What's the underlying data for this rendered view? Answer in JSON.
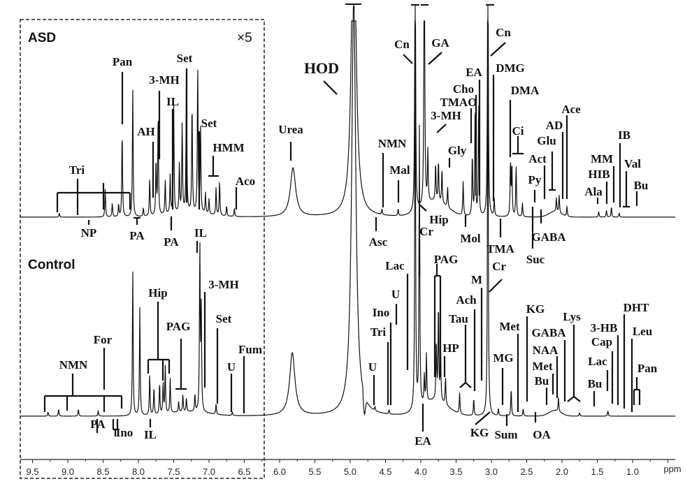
{
  "chart_data": {
    "type": "line",
    "xlabel": "ppm",
    "x_axis_reversed": true,
    "xlim": [
      9.6,
      0.4
    ],
    "x_ticks": [
      "9.5",
      "9.0",
      "8.5",
      "8.0",
      "7.5",
      "7.0",
      "6.5",
      "6.0",
      "5.5",
      "5.0",
      "4.5",
      "4.0",
      "3.5",
      "3.0",
      "2.5",
      "2.0",
      "1.5",
      "1.0"
    ],
    "x_unit_label": "ppm",
    "expanded_region": {
      "range_ppm": [
        9.6,
        6.2
      ],
      "scale_label": "×5"
    },
    "series": [
      {
        "name": "ASD",
        "peaks_ppm_intensity": [
          [
            9.12,
            6
          ],
          [
            8.47,
            40
          ],
          [
            8.37,
            20
          ],
          [
            8.28,
            18
          ],
          [
            8.23,
            125
          ],
          [
            8.08,
            185
          ],
          [
            7.93,
            12
          ],
          [
            7.84,
            55
          ],
          [
            7.75,
            80
          ],
          [
            7.72,
            150
          ],
          [
            7.62,
            50
          ],
          [
            7.55,
            55
          ],
          [
            7.5,
            155
          ],
          [
            7.42,
            70
          ],
          [
            7.38,
            130
          ],
          [
            7.32,
            215
          ],
          [
            7.24,
            160
          ],
          [
            7.16,
            215
          ],
          [
            7.12,
            125
          ],
          [
            7.05,
            30
          ],
          [
            7.0,
            22
          ],
          [
            6.9,
            40
          ],
          [
            6.85,
            50
          ],
          [
            6.75,
            15
          ],
          [
            6.64,
            12
          ],
          [
            5.81,
            70
          ],
          [
            4.95,
            500
          ],
          [
            4.55,
            8
          ],
          [
            4.32,
            10
          ],
          [
            4.08,
            500
          ],
          [
            3.95,
            500
          ],
          [
            3.9,
            75
          ],
          [
            3.79,
            55
          ],
          [
            3.75,
            60
          ],
          [
            3.7,
            50
          ],
          [
            3.62,
            30
          ],
          [
            3.4,
            50
          ],
          [
            3.27,
            90
          ],
          [
            3.23,
            165
          ],
          [
            3.18,
            170
          ],
          [
            3.05,
            500
          ],
          [
            2.96,
            25
          ],
          [
            2.73,
            80
          ],
          [
            2.71,
            75
          ],
          [
            2.65,
            75
          ],
          [
            2.56,
            20
          ],
          [
            2.08,
            20
          ],
          [
            2.04,
            25
          ],
          [
            1.93,
            15
          ],
          [
            1.48,
            8
          ],
          [
            1.37,
            10
          ],
          [
            1.3,
            15
          ],
          [
            1.19,
            6
          ]
        ]
      },
      {
        "name": "Control",
        "peaks_ppm_intensity": [
          [
            9.28,
            6
          ],
          [
            9.13,
            10
          ],
          [
            8.85,
            10
          ],
          [
            8.57,
            8
          ],
          [
            8.08,
            210
          ],
          [
            7.98,
            155
          ],
          [
            7.84,
            60
          ],
          [
            7.78,
            40
          ],
          [
            7.7,
            45
          ],
          [
            7.65,
            45
          ],
          [
            7.62,
            70
          ],
          [
            7.55,
            50
          ],
          [
            7.43,
            15
          ],
          [
            7.37,
            25
          ],
          [
            7.32,
            20
          ],
          [
            7.2,
            25
          ],
          [
            7.13,
            240
          ],
          [
            7.11,
            150
          ],
          [
            6.9,
            15
          ],
          [
            6.67,
            5
          ],
          [
            5.82,
            90
          ],
          [
            4.95,
            600
          ],
          [
            4.65,
            6
          ],
          [
            4.45,
            6
          ],
          [
            4.08,
            600
          ],
          [
            4.02,
            400
          ],
          [
            3.95,
            40
          ],
          [
            3.92,
            70
          ],
          [
            3.78,
            85
          ],
          [
            3.75,
            140
          ],
          [
            3.72,
            75
          ],
          [
            3.65,
            40
          ],
          [
            3.45,
            30
          ],
          [
            3.25,
            25
          ],
          [
            3.05,
            600
          ],
          [
            2.9,
            10
          ],
          [
            2.72,
            40
          ],
          [
            2.55,
            10
          ],
          [
            2.05,
            20
          ],
          [
            1.75,
            5
          ],
          [
            1.35,
            8
          ]
        ]
      }
    ],
    "annotations": [
      {
        "label": "Tri",
        "ppm": 8.85,
        "spectrum": "ASD"
      },
      {
        "label": "Pan",
        "ppm": 8.23,
        "spectrum": "ASD"
      },
      {
        "label": "AH",
        "ppm": 7.79,
        "spectrum": "ASD"
      },
      {
        "label": "3-MH",
        "ppm": 7.7,
        "spectrum": "ASD"
      },
      {
        "label": "IL",
        "ppm": 7.51,
        "spectrum": "ASD"
      },
      {
        "label": "Set",
        "ppm": 7.32,
        "spectrum": "ASD"
      },
      {
        "label": "Set",
        "ppm": 7.14,
        "spectrum": "ASD"
      },
      {
        "label": "HMM",
        "ppm": 6.94,
        "spectrum": "ASD"
      },
      {
        "label": "Aco",
        "ppm": 6.61,
        "spectrum": "ASD"
      },
      {
        "label": "Urea",
        "ppm": 5.84,
        "spectrum": "ASD"
      },
      {
        "label": "HOD",
        "ppm": 4.95,
        "spectrum": "ASD"
      },
      {
        "label": "NMN",
        "ppm": 4.53,
        "spectrum": "ASD"
      },
      {
        "label": "Mal",
        "ppm": 4.32,
        "spectrum": "ASD"
      },
      {
        "label": "Cn",
        "ppm": 4.07,
        "spectrum": "ASD"
      },
      {
        "label": "GA",
        "ppm": 3.95,
        "spectrum": "ASD"
      },
      {
        "label": "EA",
        "ppm": 3.17,
        "spectrum": "ASD"
      },
      {
        "label": "Cho",
        "ppm": 3.22,
        "spectrum": "ASD"
      },
      {
        "label": "TMAO",
        "ppm": 3.3,
        "spectrum": "ASD"
      },
      {
        "label": "3-MH",
        "ppm": 3.77,
        "spectrum": "ASD"
      },
      {
        "label": "Gly",
        "ppm": 3.59,
        "spectrum": "ASD"
      },
      {
        "label": "Cn",
        "ppm": 3.05,
        "spectrum": "ASD"
      },
      {
        "label": "DMG",
        "ppm": 2.97,
        "spectrum": "ASD"
      },
      {
        "label": "DMA",
        "ppm": 2.73,
        "spectrum": "ASD"
      },
      {
        "label": "Ci",
        "ppm": 2.62,
        "spectrum": "ASD"
      },
      {
        "label": "Glu",
        "ppm": 2.14,
        "spectrum": "ASD"
      },
      {
        "label": "AD",
        "ppm": 1.99,
        "spectrum": "ASD"
      },
      {
        "label": "Ace",
        "ppm": 1.93,
        "spectrum": "ASD"
      },
      {
        "label": "Act",
        "ppm": 2.25,
        "spectrum": "ASD"
      },
      {
        "label": "Py",
        "ppm": 2.39,
        "spectrum": "ASD"
      },
      {
        "label": "Ala",
        "ppm": 1.5,
        "spectrum": "ASD"
      },
      {
        "label": "HIB",
        "ppm": 1.37,
        "spectrum": "ASD"
      },
      {
        "label": "MM",
        "ppm": 1.27,
        "spectrum": "ASD"
      },
      {
        "label": "IB",
        "ppm": 1.18,
        "spectrum": "ASD"
      },
      {
        "label": "Val",
        "ppm": 1.09,
        "spectrum": "ASD"
      },
      {
        "label": "Bu",
        "ppm": 0.94,
        "spectrum": "ASD"
      },
      {
        "label": "NP",
        "ppm": 8.7,
        "spectrum": "ASD"
      },
      {
        "label": "PA",
        "ppm": 8.02,
        "spectrum": "ASD"
      },
      {
        "label": "PA",
        "ppm": 7.53,
        "spectrum": "ASD"
      },
      {
        "label": "IL",
        "ppm": 7.17,
        "spectrum": "ASD"
      },
      {
        "label": "Asc",
        "ppm": 4.63,
        "spectrum": "ASD"
      },
      {
        "label": "Hip",
        "ppm": 3.99,
        "spectrum": "ASD"
      },
      {
        "label": "Mol",
        "ppm": 3.37,
        "spectrum": "ASD"
      },
      {
        "label": "TMA",
        "ppm": 2.87,
        "spectrum": "ASD"
      },
      {
        "label": "GABA",
        "ppm": 2.3,
        "spectrum": "ASD"
      },
      {
        "label": "Suc",
        "ppm": 2.41,
        "spectrum": "ASD"
      },
      {
        "label": "Cr",
        "ppm": 4.02,
        "spectrum": "Control"
      },
      {
        "label": "Lac",
        "ppm": 4.19,
        "spectrum": "Control"
      },
      {
        "label": "U",
        "ppm": 4.35,
        "spectrum": "Control"
      },
      {
        "label": "Ino",
        "ppm": 4.43,
        "spectrum": "Control"
      },
      {
        "label": "Tri",
        "ppm": 4.47,
        "spectrum": "Control"
      },
      {
        "label": "U",
        "ppm": 4.66,
        "spectrum": "Control"
      },
      {
        "label": "PAG",
        "ppm": 3.76,
        "spectrum": "Control"
      },
      {
        "label": "M",
        "ppm": 3.14,
        "spectrum": "Control"
      },
      {
        "label": "Ach",
        "ppm": 3.24,
        "spectrum": "Control"
      },
      {
        "label": "Tau",
        "ppm": 3.37,
        "spectrum": "Control"
      },
      {
        "label": "HP",
        "ppm": 3.66,
        "spectrum": "Control"
      },
      {
        "label": "Cr",
        "ppm": 3.04,
        "spectrum": "Control"
      },
      {
        "label": "KG",
        "ppm": 2.5,
        "spectrum": "Control"
      },
      {
        "label": "Met",
        "ppm": 2.62,
        "spectrum": "Control"
      },
      {
        "label": "GABA",
        "ppm": 1.96,
        "spectrum": "Control"
      },
      {
        "label": "NAA",
        "ppm": 2.07,
        "spectrum": "Control"
      },
      {
        "label": "MG",
        "ppm": 2.84,
        "spectrum": "Control"
      },
      {
        "label": "Met",
        "ppm": 2.13,
        "spectrum": "Control"
      },
      {
        "label": "Bu",
        "ppm": 2.22,
        "spectrum": "Control"
      },
      {
        "label": "Lys",
        "ppm": 1.83,
        "spectrum": "Control"
      },
      {
        "label": "3-HB",
        "ppm": 1.21,
        "spectrum": "Control"
      },
      {
        "label": "Cap",
        "ppm": 1.29,
        "spectrum": "Control"
      },
      {
        "label": "Lac",
        "ppm": 1.36,
        "spectrum": "Control"
      },
      {
        "label": "Bu",
        "ppm": 1.54,
        "spectrum": "Control"
      },
      {
        "label": "DHT",
        "ppm": 1.12,
        "spectrum": "Control"
      },
      {
        "label": "Leu",
        "ppm": 1.01,
        "spectrum": "Control"
      },
      {
        "label": "Pan",
        "ppm": 0.94,
        "spectrum": "Control"
      },
      {
        "label": "EA",
        "ppm": 3.97,
        "spectrum": "Control"
      },
      {
        "label": "KG",
        "ppm": 3.02,
        "spectrum": "Control"
      },
      {
        "label": "Sum",
        "ppm": 2.78,
        "spectrum": "Control"
      },
      {
        "label": "OA",
        "ppm": 2.38,
        "spectrum": "Control"
      },
      {
        "label": "NMN",
        "ppm": 8.89,
        "spectrum": "Control"
      },
      {
        "label": "For",
        "ppm": 8.48,
        "spectrum": "Control"
      },
      {
        "label": "Hip",
        "ppm": 7.71,
        "spectrum": "Control"
      },
      {
        "label": "PAG",
        "ppm": 7.4,
        "spectrum": "Control"
      },
      {
        "label": "3-MH",
        "ppm": 7.05,
        "spectrum": "Control"
      },
      {
        "label": "Set",
        "ppm": 6.87,
        "spectrum": "Control"
      },
      {
        "label": "Fum",
        "ppm": 6.5,
        "spectrum": "Control"
      },
      {
        "label": "U",
        "ppm": 6.68,
        "spectrum": "Control"
      },
      {
        "label": "PA",
        "ppm": 8.58,
        "spectrum": "Control"
      },
      {
        "label": "Ino",
        "ppm": 8.31,
        "spectrum": "Control"
      },
      {
        "label": "IL",
        "ppm": 7.83,
        "spectrum": "Control"
      }
    ]
  },
  "panels": {
    "asd_label": "ASD",
    "control_label": "Control",
    "scale_label": "×5"
  },
  "colors": {
    "line": "#111111",
    "background": "#ffffff"
  }
}
